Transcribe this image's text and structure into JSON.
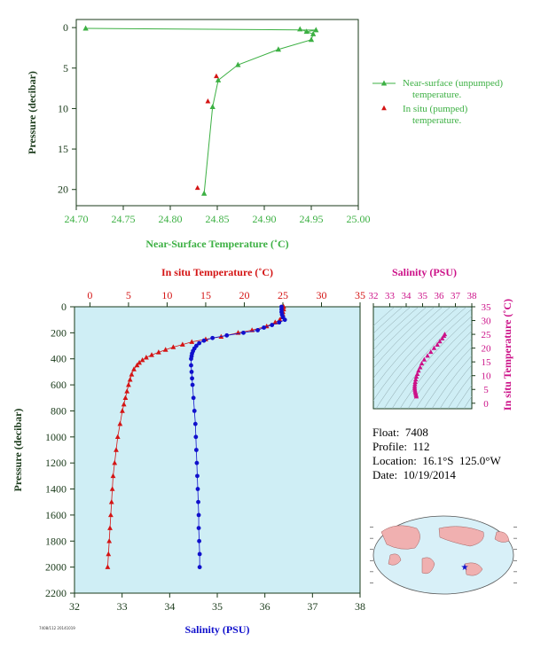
{
  "info": {
    "float": "Float:  7408",
    "profile": "Profile:  112",
    "location": "Location:  16.1°S  125.0°W",
    "date": "Date:  10/19/2014"
  },
  "footer_code": "7408/112 20141019",
  "colors": {
    "green": "#3cb043",
    "red": "#d41414",
    "blue": "#1010cc",
    "magenta": "#cc1188",
    "plotbg": "#cfeef5",
    "axis": "#1a3a1a"
  },
  "chart_data": [
    {
      "type": "line",
      "xlabel": "Near-Surface Temperature (˚C)",
      "ylabel": "Pressure (decibar)",
      "xlim": [
        24.7,
        25.0
      ],
      "ylim": [
        22,
        -1
      ],
      "xticks": [
        "24.70",
        "24.75",
        "24.80",
        "24.85",
        "24.90",
        "24.95",
        "25.00"
      ],
      "yticks": [
        "0",
        "5",
        "10",
        "15",
        "20"
      ],
      "series": [
        {
          "name": "Near-surface (unpumped)\ntemperature.",
          "x": [
            24.71,
            24.955,
            24.945,
            24.938,
            24.952,
            24.95,
            24.915,
            24.872,
            24.851,
            24.845,
            24.836
          ],
          "y": [
            0.1,
            0.3,
            0.5,
            0.2,
            0.8,
            1.5,
            2.7,
            4.6,
            6.5,
            9.8,
            20.5
          ]
        },
        {
          "name": "In situ (pumped)\ntemperature.",
          "x": [
            24.849,
            24.84,
            24.829
          ],
          "y": [
            6.0,
            9.1,
            19.8
          ]
        }
      ]
    },
    {
      "type": "line",
      "xlabel_top": "In situ Temperature (˚C)",
      "xlabel_bottom": "Salinity (PSU)",
      "ylabel": "Pressure (decibar)",
      "temp_lim": [
        -2,
        35
      ],
      "sal_lim": [
        32,
        38
      ],
      "ylim": [
        2200,
        0
      ],
      "temp_ticks": [
        "0",
        "5",
        "10",
        "15",
        "20",
        "25",
        "30",
        "35"
      ],
      "sal_ticks": [
        "32",
        "33",
        "34",
        "35",
        "36",
        "37",
        "38"
      ],
      "yticks": [
        "0",
        "200",
        "400",
        "600",
        "800",
        "1000",
        "1200",
        "1400",
        "1600",
        "1800",
        "2000",
        "2200"
      ],
      "series": [
        {
          "name": "Temperature",
          "p": [
            0,
            20,
            40,
            60,
            80,
            100,
            120,
            150,
            180,
            200,
            230,
            250,
            270,
            290,
            310,
            330,
            350,
            370,
            390,
            410,
            430,
            450,
            480,
            520,
            560,
            600,
            650,
            700,
            750,
            800,
            900,
            1000,
            1100,
            1200,
            1300,
            1400,
            1500,
            1600,
            1700,
            1800,
            1900,
            2000
          ],
          "vals": [
            25.1,
            25.1,
            25.0,
            25.0,
            24.9,
            24.6,
            24.0,
            22.9,
            21.0,
            19.2,
            17.0,
            15.0,
            13.2,
            12.0,
            10.8,
            9.8,
            8.9,
            8.0,
            7.3,
            6.8,
            6.4,
            6.1,
            5.7,
            5.4,
            5.2,
            5.0,
            4.8,
            4.6,
            4.4,
            4.2,
            3.9,
            3.6,
            3.4,
            3.2,
            3.0,
            2.9,
            2.8,
            2.7,
            2.6,
            2.5,
            2.4,
            2.3
          ]
        },
        {
          "name": "Salinity",
          "p": [
            0,
            20,
            40,
            60,
            80,
            100,
            120,
            140,
            160,
            180,
            200,
            220,
            240,
            260,
            280,
            300,
            320,
            340,
            360,
            380,
            400,
            450,
            500,
            550,
            600,
            700,
            800,
            900,
            1000,
            1100,
            1200,
            1300,
            1400,
            1500,
            1600,
            1700,
            1800,
            1900,
            2000
          ],
          "vals": [
            36.35,
            36.35,
            36.35,
            36.36,
            36.38,
            36.42,
            36.3,
            36.15,
            35.98,
            35.85,
            35.55,
            35.2,
            34.9,
            34.72,
            34.62,
            34.56,
            34.52,
            34.49,
            34.47,
            34.46,
            34.45,
            34.45,
            34.46,
            34.47,
            34.48,
            34.5,
            34.52,
            34.54,
            34.55,
            34.56,
            34.57,
            34.58,
            34.59,
            34.6,
            34.61,
            34.61,
            34.62,
            34.63,
            34.63
          ]
        }
      ]
    },
    {
      "type": "scatter",
      "xlabel": "Salinity (PSU)",
      "ylabel": "In situ Temperature (˚C)",
      "xlim": [
        32,
        38
      ],
      "ylim": [
        -2,
        35
      ],
      "xticks": [
        "32",
        "33",
        "34",
        "35",
        "36",
        "37",
        "38"
      ],
      "yticks": [
        "0",
        "5",
        "10",
        "15",
        "20",
        "25",
        "30",
        "35"
      ],
      "points": {
        "s": [
          36.35,
          36.3,
          36.2,
          36.05,
          35.9,
          35.7,
          35.5,
          35.3,
          35.1,
          34.95,
          34.85,
          34.75,
          34.68,
          34.62,
          34.58,
          34.55,
          34.53,
          34.52,
          34.52,
          34.53,
          34.55,
          34.57,
          34.59,
          34.61,
          34.62
        ],
        "t": [
          25.0,
          24.4,
          23.5,
          22.4,
          21.2,
          20.0,
          18.6,
          17.2,
          15.8,
          14.4,
          13.0,
          11.8,
          10.6,
          9.6,
          8.6,
          7.7,
          6.9,
          6.1,
          5.5,
          4.9,
          4.3,
          3.8,
          3.3,
          2.8,
          2.4
        ]
      }
    }
  ]
}
